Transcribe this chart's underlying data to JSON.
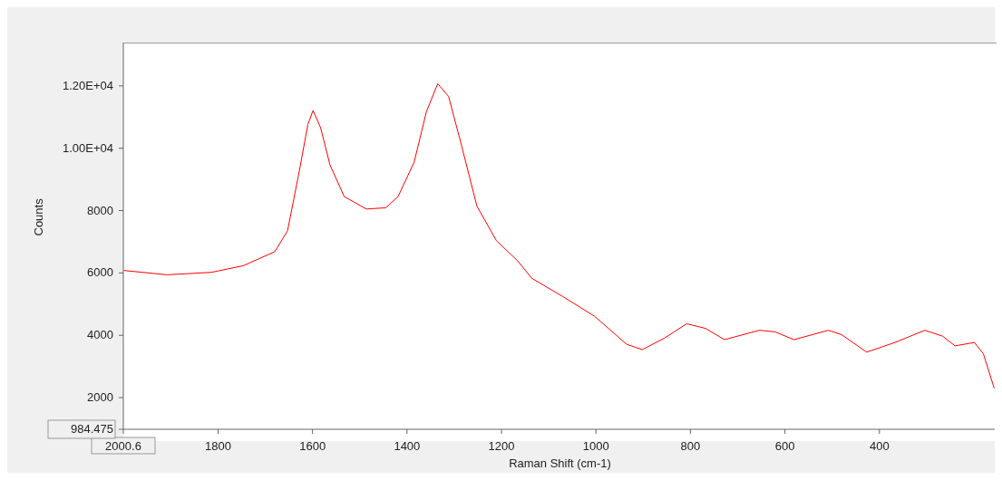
{
  "chart_data": {
    "type": "line",
    "xlabel": "Raman Shift (cm-1)",
    "ylabel": "Counts",
    "x": [
      2000,
      1908,
      1814,
      1747,
      1680,
      1653,
      1627,
      1610,
      1599,
      1583,
      1563,
      1533,
      1486,
      1445,
      1419,
      1385,
      1359,
      1335,
      1312,
      1286,
      1252,
      1211,
      1166,
      1136,
      1070,
      1003,
      935,
      902,
      855,
      808,
      768,
      728,
      654,
      621,
      581,
      508,
      480,
      427,
      367,
      304,
      266,
      240,
      199,
      180,
      157
    ],
    "series": [
      {
        "color": "#ff0000",
        "values": [
          6080,
          5940,
          6020,
          6230,
          6680,
          7350,
          9350,
          10760,
          11210,
          10660,
          9460,
          8450,
          8050,
          8090,
          8450,
          9550,
          11170,
          12070,
          11660,
          10170,
          8140,
          7040,
          6390,
          5830,
          5240,
          4610,
          3710,
          3540,
          3910,
          4370,
          4220,
          3860,
          4160,
          4110,
          3860,
          4160,
          4020,
          3460,
          3770,
          4160,
          3970,
          3660,
          3770,
          3410,
          2300
        ]
      }
    ],
    "xlim": [
      2000.6,
      152
    ],
    "xticks": [
      2000.6,
      1800,
      1600,
      1400,
      1200,
      1000,
      800,
      600,
      400
    ],
    "ylim": [
      984.475,
      13390
    ],
    "yticks": [
      984.475,
      2000,
      4000,
      6000,
      8000,
      {
        "value": 10000,
        "label": "1.00E+04"
      },
      {
        "value": 12000,
        "label": "1.20E+04"
      }
    ],
    "grid": false,
    "legend": false,
    "marker": "none",
    "line_style": "solid"
  }
}
